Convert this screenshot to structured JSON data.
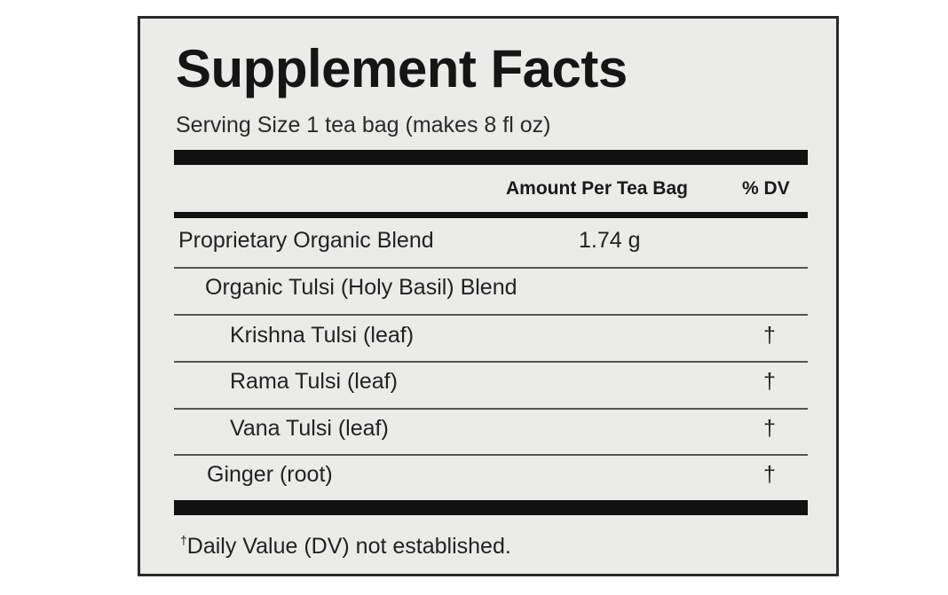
{
  "title": "Supplement Facts",
  "serving_size": "Serving Size 1 tea bag (makes 8 fl oz)",
  "header": {
    "amount": "Amount Per Tea Bag",
    "dv": "% DV"
  },
  "rows": [
    {
      "name": "Proprietary Organic Blend",
      "amount": "1.74 g"
    },
    {
      "name": "Organic Tulsi (Holy Basil) Blend"
    },
    {
      "name": "Krishna Tulsi (leaf)",
      "dv": "†"
    },
    {
      "name": "Rama Tulsi (leaf)",
      "dv": "†"
    },
    {
      "name": "Vana Tulsi (leaf)",
      "dv": "†"
    },
    {
      "name": "Ginger (root)",
      "dv": "†"
    }
  ],
  "footnote": {
    "mark": "†",
    "text": "Daily Value (DV) not established."
  }
}
